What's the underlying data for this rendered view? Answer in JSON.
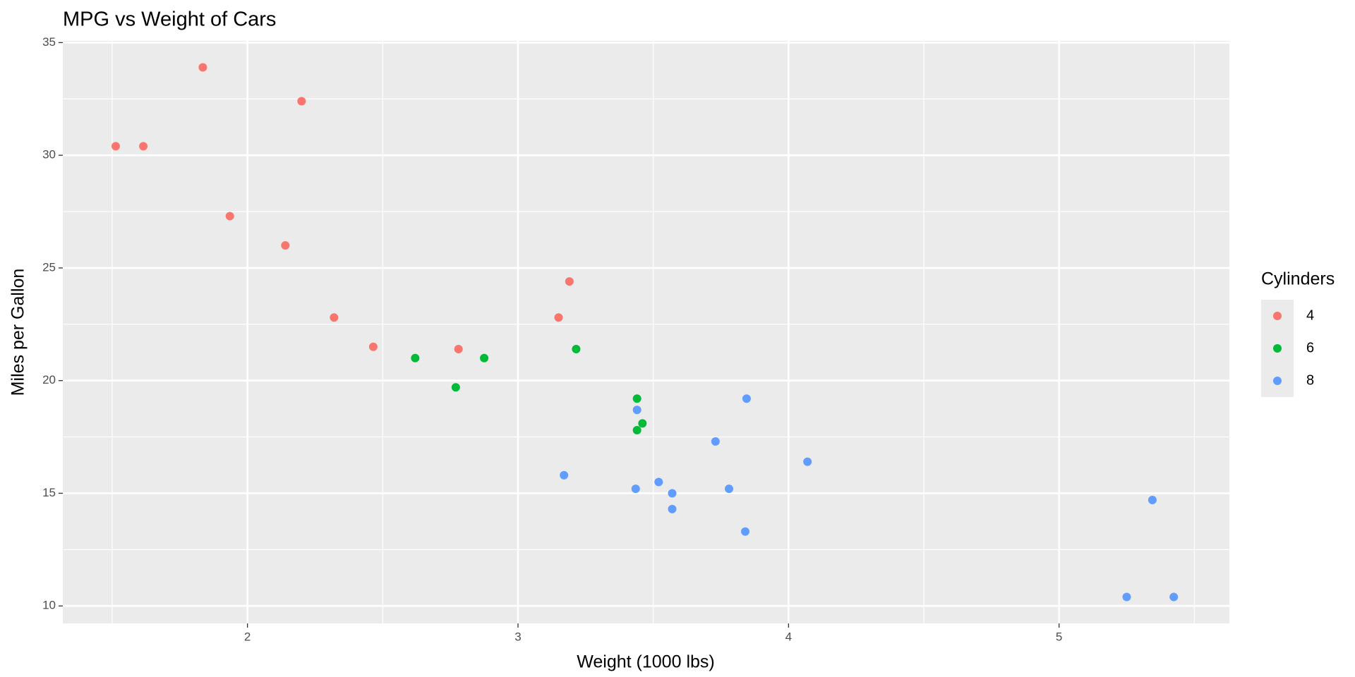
{
  "chart_data": {
    "type": "scatter",
    "title": "MPG vs Weight of Cars",
    "x_label": "Weight (1000 lbs)",
    "y_label": "Miles per Gallon",
    "legend_title": "Cylinders",
    "xlim": [
      1.31745,
      5.62955
    ],
    "ylim": [
      9.225,
      35.075
    ],
    "xticks": [
      2,
      3,
      4,
      5
    ],
    "yticks": [
      10,
      15,
      20,
      25,
      30,
      35
    ],
    "minor_xticks": [
      1.5,
      2.5,
      3.5,
      4.5,
      5.5
    ],
    "minor_yticks": [
      12.5,
      17.5,
      22.5,
      27.5,
      32.5
    ],
    "grid": true,
    "legend": "right",
    "series": [
      {
        "name": "4",
        "color": "#F8766D",
        "x": [
          2.32,
          3.19,
          3.15,
          2.2,
          1.615,
          1.835,
          2.465,
          1.935,
          2.14,
          1.513,
          2.78
        ],
        "values": [
          22.8,
          24.4,
          22.8,
          32.4,
          30.4,
          33.9,
          21.5,
          27.3,
          26.0,
          30.4,
          21.4
        ]
      },
      {
        "name": "6",
        "color": "#00BA38",
        "x": [
          2.62,
          2.875,
          3.215,
          3.46,
          3.44,
          3.44,
          2.77
        ],
        "values": [
          21.0,
          21.0,
          21.4,
          18.1,
          19.2,
          17.8,
          19.7
        ]
      },
      {
        "name": "8",
        "color": "#619CFF",
        "x": [
          3.44,
          3.57,
          4.07,
          3.73,
          3.78,
          5.25,
          5.424,
          5.345,
          3.52,
          3.435,
          3.84,
          3.845,
          3.17,
          3.57
        ],
        "values": [
          18.7,
          14.3,
          16.4,
          17.3,
          15.2,
          10.4,
          10.4,
          14.7,
          15.5,
          15.2,
          13.3,
          19.2,
          15.8,
          15.0
        ]
      }
    ]
  }
}
